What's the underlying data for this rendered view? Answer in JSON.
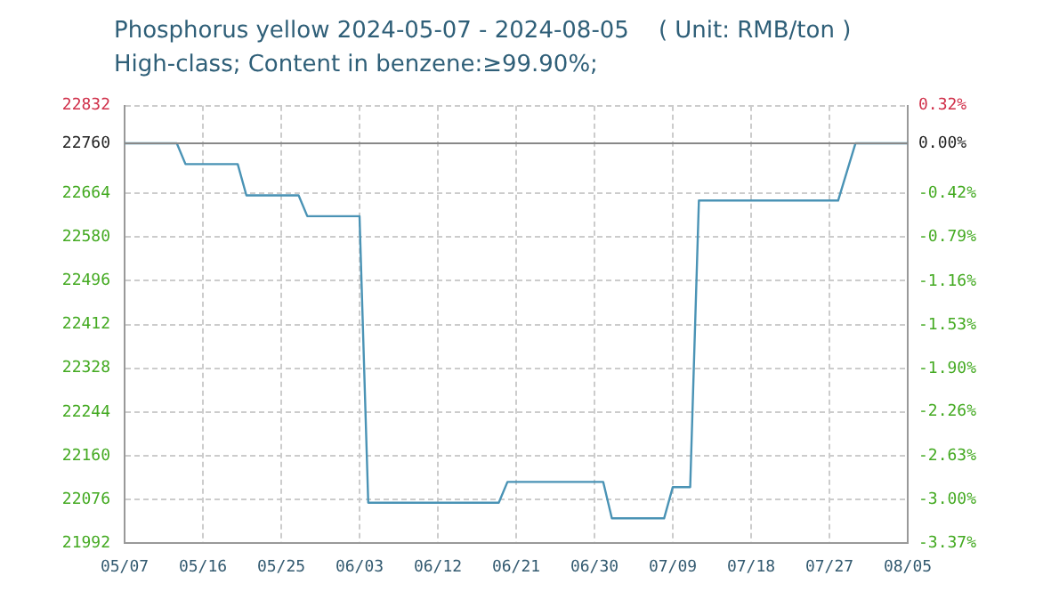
{
  "chart_data": {
    "type": "line",
    "title": "Phosphorus yellow 2024-05-07 - 2024-08-05    ( Unit: RMB/ton )",
    "subtitle": "High-class; Content in benzene:≥99.90%;",
    "x": [
      "2024-05-07",
      "2024-05-13",
      "2024-05-14",
      "2024-05-20",
      "2024-05-21",
      "2024-05-27",
      "2024-05-28",
      "2024-06-03",
      "2024-06-04",
      "2024-06-19",
      "2024-06-20",
      "2024-07-01",
      "2024-07-02",
      "2024-07-08",
      "2024-07-09",
      "2024-07-11",
      "2024-07-12",
      "2024-07-28",
      "2024-07-30",
      "2024-08-05"
    ],
    "series": [
      {
        "color": "#4a93b5",
        "values": [
          22760,
          22760,
          22720,
          22720,
          22660,
          22660,
          22620,
          22620,
          22070,
          22070,
          22110,
          22110,
          22040,
          22040,
          22100,
          22100,
          22650,
          22650,
          22760,
          22760
        ]
      }
    ],
    "xlim": [
      "2024-05-07",
      "2024-08-05"
    ],
    "xticks": [
      {
        "value": "2024-05-07",
        "label": "05/07"
      },
      {
        "value": "2024-05-16",
        "label": "05/16"
      },
      {
        "value": "2024-05-25",
        "label": "05/25"
      },
      {
        "value": "2024-06-03",
        "label": "06/03"
      },
      {
        "value": "2024-06-12",
        "label": "06/12"
      },
      {
        "value": "2024-06-21",
        "label": "06/21"
      },
      {
        "value": "2024-06-30",
        "label": "06/30"
      },
      {
        "value": "2024-07-09",
        "label": "07/09"
      },
      {
        "value": "2024-07-18",
        "label": "07/18"
      },
      {
        "value": "2024-07-27",
        "label": "07/27"
      },
      {
        "value": "2024-08-05",
        "label": "08/05"
      }
    ],
    "ylim": [
      21992,
      22832
    ],
    "yticks": [
      21992,
      22076,
      22160,
      22244,
      22328,
      22412,
      22496,
      22580,
      22664,
      22760,
      22832
    ],
    "y2lim": [
      -3.37,
      0.32
    ],
    "y2ticks": [
      {
        "value": -3.37,
        "label": "-3.37%"
      },
      {
        "value": -3.0,
        "label": "-3.00%"
      },
      {
        "value": -2.63,
        "label": "-2.63%"
      },
      {
        "value": -2.26,
        "label": "-2.26%"
      },
      {
        "value": -1.9,
        "label": "-1.90%"
      },
      {
        "value": -1.53,
        "label": "-1.53%"
      },
      {
        "value": -1.16,
        "label": "-1.16%"
      },
      {
        "value": -0.79,
        "label": "-0.79%"
      },
      {
        "value": -0.42,
        "label": "-0.42%"
      },
      {
        "value": 0,
        "label": "0.00%"
      },
      {
        "value": 0.32,
        "label": "0.32%"
      }
    ],
    "ref_lines": [
      {
        "axis": "y",
        "value": 22760,
        "color": "#888888"
      }
    ],
    "grid": true,
    "legend": false,
    "marker": "none",
    "line_style": "solid"
  }
}
